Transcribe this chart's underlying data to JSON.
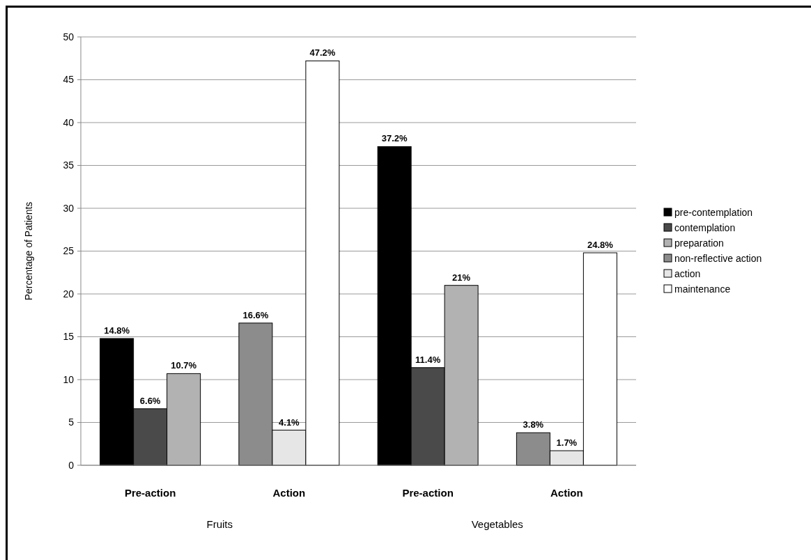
{
  "chart_data": {
    "type": "bar",
    "ylabel": "Percentage of Patients",
    "categories": [
      "Pre-action",
      "Action",
      "Pre-action",
      "Action"
    ],
    "annotations": [
      "Fruits",
      "Vegetables"
    ],
    "series": [
      {
        "name": "pre-contemplation",
        "color": "#000000",
        "values": [
          14.8,
          null,
          37.2,
          null
        ],
        "value_labels": [
          "14.8%",
          null,
          "37.2%",
          null
        ]
      },
      {
        "name": "contemplation",
        "color": "#4a4a4a",
        "values": [
          6.6,
          null,
          11.4,
          null
        ],
        "value_labels": [
          "6.6%",
          null,
          "11.4%",
          null
        ]
      },
      {
        "name": "preparation",
        "color": "#b2b2b2",
        "values": [
          10.7,
          null,
          21,
          null
        ],
        "value_labels": [
          "10.7%",
          null,
          "21%",
          null
        ]
      },
      {
        "name": "non-reflective action",
        "color": "#8c8c8c",
        "values": [
          null,
          16.6,
          null,
          3.8
        ],
        "value_labels": [
          null,
          "16.6%",
          null,
          "3.8%"
        ]
      },
      {
        "name": "action",
        "color": "#e6e6e6",
        "values": [
          null,
          4.1,
          null,
          1.7
        ],
        "value_labels": [
          null,
          "4.1%",
          null,
          "1.7%"
        ]
      },
      {
        "name": "maintenance",
        "color": "#ffffff",
        "values": [
          null,
          47.2,
          null,
          24.8
        ],
        "value_labels": [
          null,
          "47.2%",
          null,
          "24.8%"
        ]
      }
    ],
    "ylim": [
      0,
      50
    ],
    "yticks": [
      0,
      5,
      10,
      15,
      20,
      25,
      30,
      35,
      40,
      45,
      50
    ],
    "grid": "y",
    "legend": "right"
  }
}
